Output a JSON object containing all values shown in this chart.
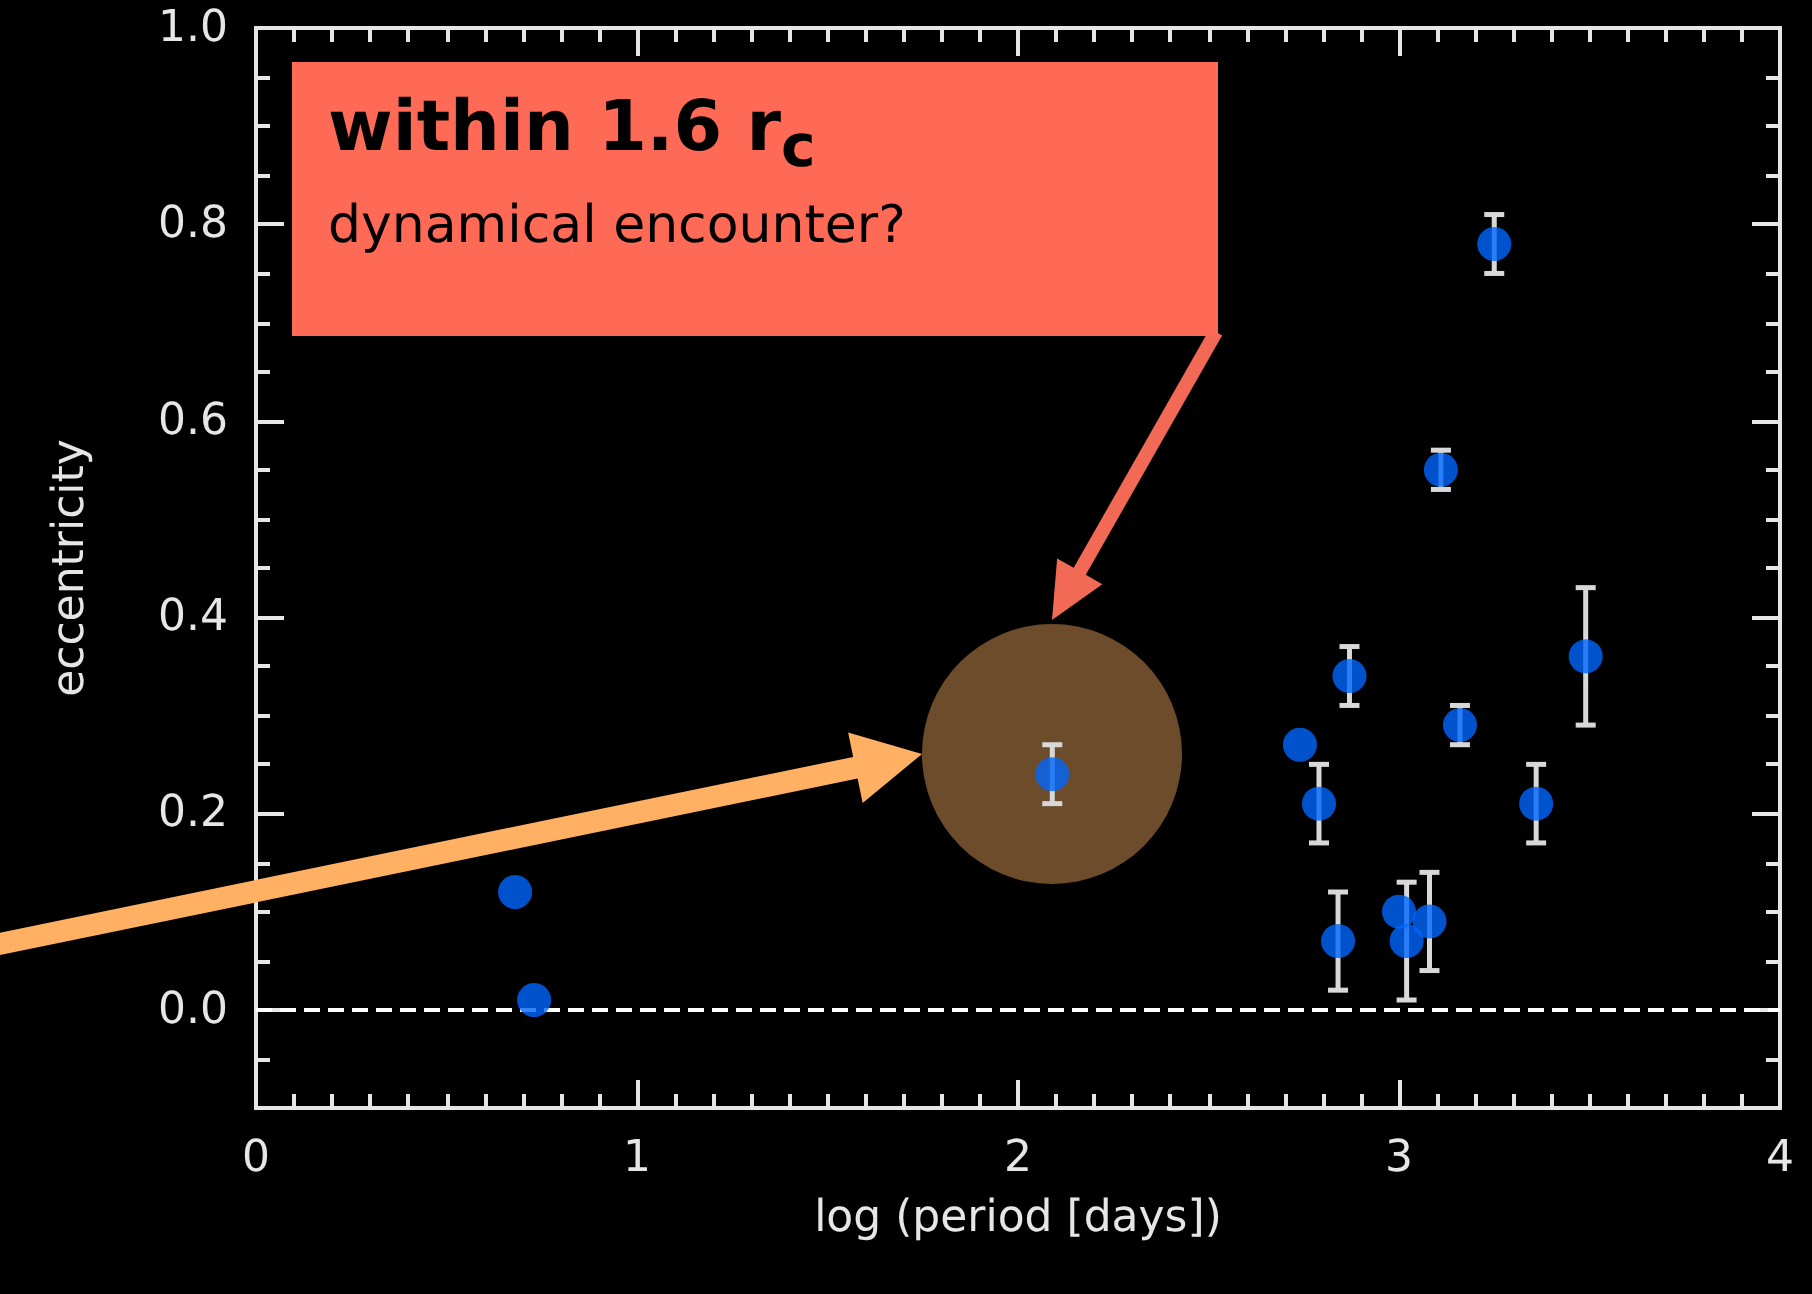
{
  "chart_data": {
    "type": "scatter",
    "xlabel": "log (period [days])",
    "ylabel": "eccentricity",
    "x": [
      0.68,
      0.73,
      2.09,
      2.74,
      2.79,
      2.84,
      2.87,
      3.0,
      3.02,
      3.08,
      3.11,
      3.16,
      3.25,
      3.36,
      3.49
    ],
    "series": [
      {
        "color": "#0066ff",
        "values": [
          0.12,
          0.01,
          0.24,
          0.27,
          0.21,
          0.07,
          0.34,
          0.1,
          0.07,
          0.09,
          0.55,
          0.29,
          0.78,
          0.21,
          0.36
        ],
        "errors": [
          null,
          null,
          0.03,
          null,
          0.04,
          0.05,
          0.03,
          null,
          0.06,
          0.05,
          0.02,
          0.02,
          0.03,
          0.04,
          0.07
        ]
      }
    ],
    "xlim": [
      0,
      4
    ],
    "xticks": [
      0,
      1,
      2,
      3,
      4
    ],
    "ylim": [
      -0.1,
      1.0
    ],
    "yticks": [
      {
        "value": 0,
        "label": "0.0"
      },
      0.2,
      0.4,
      0.6,
      0.8,
      {
        "value": 1,
        "label": "1.0"
      }
    ],
    "ref_lines": [
      {
        "axis": "y",
        "value": 0,
        "line_style": "dashed",
        "color": "#ffffff"
      }
    ],
    "annotations": [
      "within 1.6 r$_{c}$\ndynamical encounter?"
    ],
    "marker": "circle",
    "grid": false
  }
}
